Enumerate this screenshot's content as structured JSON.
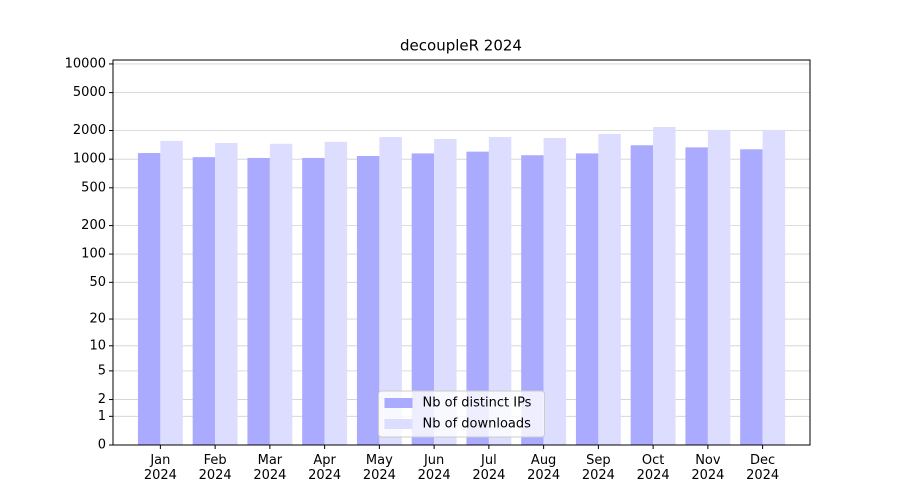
{
  "chart_data": {
    "type": "bar",
    "title": "decoupleR 2024",
    "categories": [
      "Jan\n2024",
      "Feb\n2024",
      "Mar\n2024",
      "Apr\n2024",
      "May\n2024",
      "Jun\n2024",
      "Jul\n2024",
      "Aug\n2024",
      "Sep\n2024",
      "Oct\n2024",
      "Nov\n2024",
      "Dec\n2024"
    ],
    "series": [
      {
        "name": "Nb of distinct IPs",
        "color": "#aaaaff",
        "values": [
          1160,
          1050,
          1030,
          1030,
          1080,
          1150,
          1200,
          1100,
          1150,
          1400,
          1330,
          1270
        ]
      },
      {
        "name": "Nb of downloads",
        "color": "#ddddff",
        "values": [
          1555,
          1480,
          1450,
          1520,
          1710,
          1630,
          1710,
          1670,
          1840,
          2180,
          2030,
          2030
        ]
      }
    ],
    "yscale": "log1p",
    "ylim": [
      0,
      11000
    ],
    "yticks": [
      0,
      1,
      2,
      5,
      10,
      20,
      50,
      100,
      200,
      500,
      1000,
      2000,
      5000,
      10000
    ],
    "grid": true,
    "legend": "lower center"
  }
}
